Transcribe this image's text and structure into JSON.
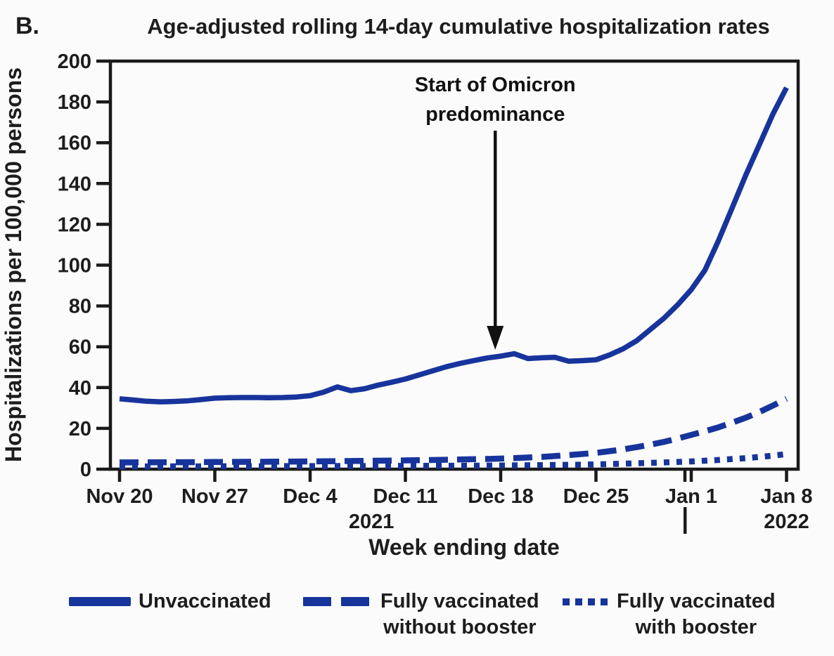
{
  "chart_data": {
    "type": "line",
    "panel_label": "B.",
    "title": "Age-adjusted rolling 14-day cumulative hospitalization rates",
    "xlabel": "Week ending date",
    "ylabel": "Hospitalizations per 100,000 persons",
    "ylim": [
      0,
      200
    ],
    "y_ticks": [
      0,
      20,
      40,
      60,
      80,
      100,
      120,
      140,
      160,
      180,
      200
    ],
    "x_ticks": [
      "Nov 20",
      "Nov 27",
      "Dec 4",
      "Dec 11",
      "Dec 18",
      "Dec 25",
      "Jan 1",
      "Jan 8"
    ],
    "x_tick_days": [
      0,
      7,
      14,
      21,
      28,
      35,
      42,
      49
    ],
    "year_labels": [
      {
        "text": "2021",
        "anchor_day": 18.5
      },
      {
        "text": "2022",
        "anchor_day": 49
      }
    ],
    "year_divider_tick_index": 6,
    "grid": false,
    "legend_position": "bottom",
    "line_color": "#17349C",
    "axis_color": "#1a1a1a",
    "annotation": {
      "lines": [
        "Start of Omicron",
        "predominance"
      ],
      "x_day": 27.6,
      "arrow_tip_value": 58.5
    },
    "series": [
      {
        "name": "Unvaccinated",
        "style": "solid",
        "label_lines": [
          "Unvaccinated"
        ],
        "points": [
          [
            0,
            34.5
          ],
          [
            1,
            33.9
          ],
          [
            2,
            33.3
          ],
          [
            3,
            33.0
          ],
          [
            4,
            33.2
          ],
          [
            5,
            33.5
          ],
          [
            6,
            34.1
          ],
          [
            7,
            34.8
          ],
          [
            8,
            35.0
          ],
          [
            9,
            35.1
          ],
          [
            10,
            35.1
          ],
          [
            11,
            35.0
          ],
          [
            12,
            35.1
          ],
          [
            13,
            35.4
          ],
          [
            14,
            36.0
          ],
          [
            15,
            37.8
          ],
          [
            16,
            40.3
          ],
          [
            17,
            38.5
          ],
          [
            18,
            39.4
          ],
          [
            19,
            41.2
          ],
          [
            20,
            42.6
          ],
          [
            21,
            44.2
          ],
          [
            22,
            46.2
          ],
          [
            23,
            48.2
          ],
          [
            24,
            50.2
          ],
          [
            25,
            51.8
          ],
          [
            26,
            53.2
          ],
          [
            27,
            54.5
          ],
          [
            28,
            55.4
          ],
          [
            29,
            56.6
          ],
          [
            30,
            54.2
          ],
          [
            31,
            54.6
          ],
          [
            32,
            54.8
          ],
          [
            33,
            52.9
          ],
          [
            34,
            53.2
          ],
          [
            35,
            53.6
          ],
          [
            36,
            56.0
          ],
          [
            37,
            59.0
          ],
          [
            38,
            63.0
          ],
          [
            39,
            68.5
          ],
          [
            40,
            74.0
          ],
          [
            41,
            80.5
          ],
          [
            42,
            88.0
          ],
          [
            43,
            97.5
          ],
          [
            44,
            112.0
          ],
          [
            45,
            128.0
          ],
          [
            46,
            144.0
          ],
          [
            47,
            159.0
          ],
          [
            48,
            174.0
          ],
          [
            49,
            187.0
          ]
        ]
      },
      {
        "name": "Fully vaccinated without booster",
        "style": "dashed",
        "label_lines": [
          "Fully vaccinated",
          "without booster"
        ],
        "points": [
          [
            0,
            3.3
          ],
          [
            4,
            3.4
          ],
          [
            7,
            3.5
          ],
          [
            10,
            3.6
          ],
          [
            14,
            3.8
          ],
          [
            17,
            4.0
          ],
          [
            21,
            4.3
          ],
          [
            24,
            4.6
          ],
          [
            27,
            5.0
          ],
          [
            29,
            5.4
          ],
          [
            31,
            6.0
          ],
          [
            33,
            6.9
          ],
          [
            35,
            8.0
          ],
          [
            36,
            8.8
          ],
          [
            37,
            9.7
          ],
          [
            38,
            10.8
          ],
          [
            39,
            12.0
          ],
          [
            40,
            13.4
          ],
          [
            41,
            15.0
          ],
          [
            42,
            16.8
          ],
          [
            43,
            18.6
          ],
          [
            44,
            20.5
          ],
          [
            45,
            22.8
          ],
          [
            46,
            25.2
          ],
          [
            47,
            28.0
          ],
          [
            48,
            31.2
          ],
          [
            49,
            34.5
          ]
        ]
      },
      {
        "name": "Fully vaccinated with booster",
        "style": "dotted",
        "label_lines": [
          "Fully vaccinated",
          "with booster"
        ],
        "points": [
          [
            0,
            1.3
          ],
          [
            7,
            1.4
          ],
          [
            14,
            1.5
          ],
          [
            21,
            1.6
          ],
          [
            25,
            1.7
          ],
          [
            28,
            1.8
          ],
          [
            31,
            2.0
          ],
          [
            34,
            2.2
          ],
          [
            36,
            2.5
          ],
          [
            38,
            2.9
          ],
          [
            40,
            3.3
          ],
          [
            42,
            3.8
          ],
          [
            44,
            4.5
          ],
          [
            46,
            5.4
          ],
          [
            48,
            6.6
          ],
          [
            49,
            7.4
          ]
        ]
      }
    ]
  }
}
